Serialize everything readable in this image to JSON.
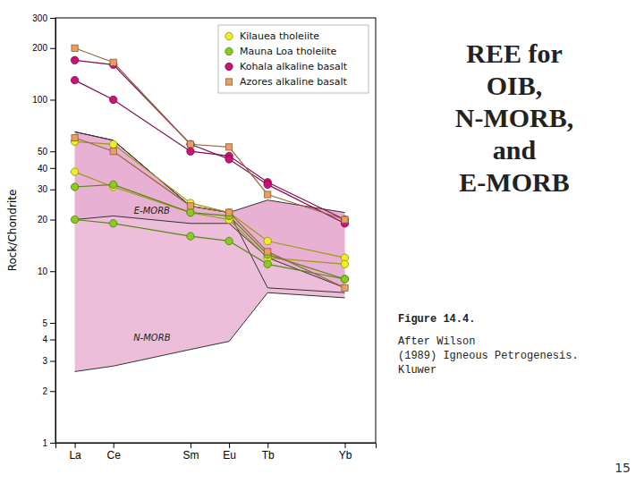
{
  "chart_data": {
    "type": "line",
    "title": "REE for\nOIB,\nN-MORB,\nand\nE-MORB",
    "x": [
      0,
      1,
      3,
      4,
      5,
      7
    ],
    "xlim": [
      -0.5,
      7.8
    ],
    "xticks": [
      {
        "value": 0,
        "label": "La"
      },
      {
        "value": 1,
        "label": "Ce"
      },
      {
        "value": 3,
        "label": "Sm"
      },
      {
        "value": 4,
        "label": "Eu"
      },
      {
        "value": 5,
        "label": "Tb"
      },
      {
        "value": 7,
        "label": "Yb"
      }
    ],
    "ylim": [
      1,
      300
    ],
    "yticks": [
      1,
      2,
      3,
      4,
      5,
      10,
      20,
      30,
      40,
      50,
      100,
      200,
      300
    ],
    "log": "y",
    "ylabel": "Rock/Chondrite",
    "grid": false,
    "legend": "upper right",
    "bands": [
      {
        "label": "N-MORB",
        "color": "#DD88BB",
        "lower": [
          2.6,
          2.8,
          3.5,
          3.9,
          7.5,
          7.0
        ],
        "upper": [
          65,
          58,
          24,
          22,
          8.0,
          7.5
        ]
      },
      {
        "label": "E-MORB",
        "color": "#DD88BB",
        "lower": [
          20,
          21,
          19,
          19,
          12,
          8.0
        ],
        "upper": [
          65,
          58,
          24,
          22,
          26,
          22
        ]
      }
    ],
    "series": [
      {
        "name": "Kilauea tholeiite",
        "color": "#EEEE22",
        "marker": "circle",
        "values": [
          57,
          55,
          25,
          22,
          15,
          12
        ]
      },
      {
        "name": "Kilauea tholeiite",
        "color": "#EEEE22",
        "marker": "circle",
        "values": [
          38,
          31,
          22,
          20,
          12,
          11
        ]
      },
      {
        "name": "Mauna Loa tholeiite",
        "color": "#88CC22",
        "marker": "circle",
        "values": [
          20,
          19,
          16,
          15,
          11,
          9
        ]
      },
      {
        "name": "Mauna Loa tholeiite",
        "color": "#88CC22",
        "marker": "circle",
        "values": [
          31,
          32,
          22,
          21,
          12.5,
          9
        ]
      },
      {
        "name": "Kohala alkaline basalt",
        "color": "#CC1177",
        "marker": "circle",
        "values": [
          130,
          100,
          50,
          47,
          33,
          20
        ]
      },
      {
        "name": "Kohala alkaline basalt",
        "color": "#CC1177",
        "marker": "circle",
        "values": [
          170,
          160,
          55,
          45,
          32,
          19
        ]
      },
      {
        "name": "Azores alkaline basalt",
        "color": "#E8A060",
        "marker": "square",
        "values": [
          200,
          165,
          55,
          53,
          28,
          20
        ]
      },
      {
        "name": "Azores alkaline basalt",
        "color": "#E8A060",
        "marker": "square",
        "values": [
          60,
          50,
          24,
          22,
          13,
          8
        ]
      }
    ],
    "annotations": [
      "Figure 14.4.",
      "After Wilson\n(1989) Igneous Petrogenesis.\nKluwer",
      "15"
    ]
  }
}
